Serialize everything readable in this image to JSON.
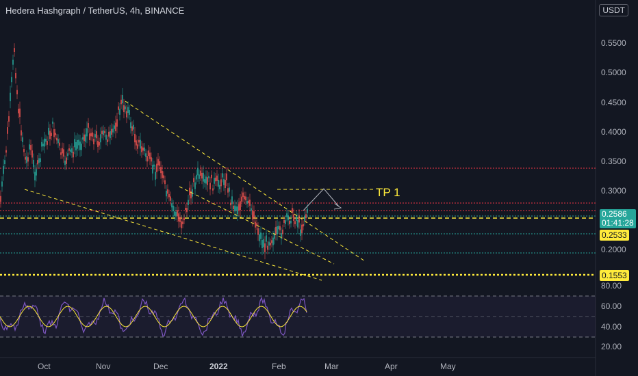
{
  "header": {
    "title": "Hedera Hashgraph / TetherUS, 4h, BINANCE",
    "currency": "USDT"
  },
  "price_axis": {
    "ticks": [
      "0.5500",
      "0.5000",
      "0.4500",
      "0.4000",
      "0.3500",
      "0.3000",
      "0.2000"
    ],
    "current_price": "0.2586",
    "countdown": "01:41:28",
    "level_1": "0.2533",
    "level_2": "0.1553"
  },
  "rsi_axis": {
    "ticks": [
      "80.00",
      "60.00",
      "40.00",
      "20.00"
    ]
  },
  "time_axis": {
    "ticks": [
      "Oct",
      "Nov",
      "Dec",
      "2022",
      "Feb",
      "Mar",
      "Apr",
      "May"
    ]
  },
  "annotations": {
    "tp_label": "TP 1"
  },
  "colors": {
    "background": "#131722",
    "up_candle": "#26a69a",
    "down_candle": "#ef5350",
    "trendline": "#ffeb3b",
    "resistance": "#f23645",
    "rsi": "#7e57c2",
    "rsi_ma": "#ffeb3b"
  }
}
